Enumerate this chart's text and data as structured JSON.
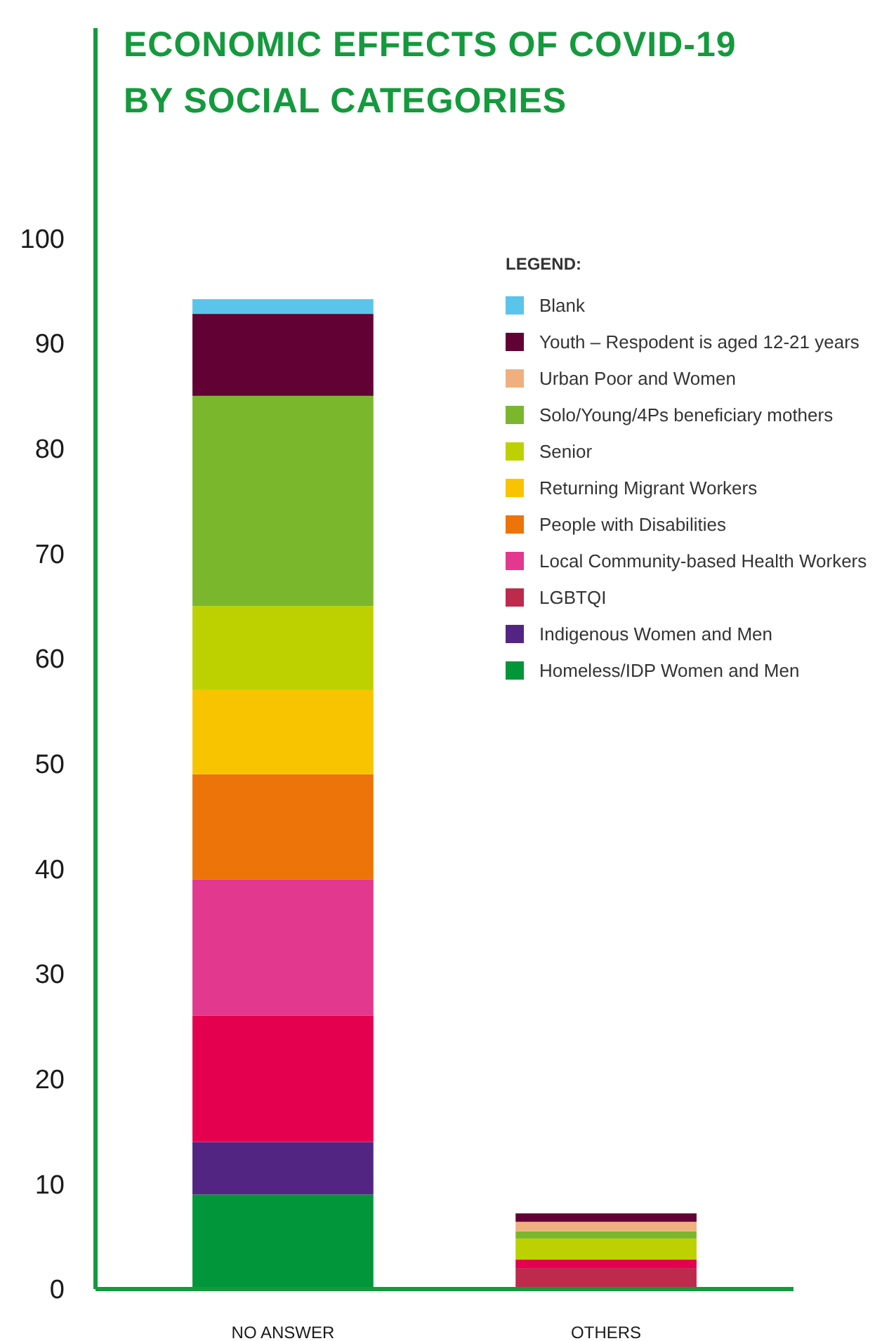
{
  "chart_data": {
    "type": "bar",
    "stacked": true,
    "title": "ECONOMIC EFFECTS OF COVID-19\nBY SOCIAL CATEGORIES",
    "legend_title": "LEGEND:",
    "legend": "top right",
    "grid": false,
    "categories": [
      "NO ANSWER",
      "OTHERS"
    ],
    "ylim": [
      0,
      120
    ],
    "yticks": [
      0,
      10,
      20,
      30,
      40,
      50,
      60,
      70,
      80,
      90,
      100
    ],
    "series": [
      {
        "name": "Homeless/IDP Women and Men",
        "color": "#009639",
        "values": [
          9,
          null
        ]
      },
      {
        "name": "Indigenous Women and Men",
        "color": "#522583",
        "values": [
          5,
          null
        ]
      },
      {
        "name": "LGBTQI",
        "color": "#be2a4c",
        "values": [
          null,
          2
        ]
      },
      {
        "color": "#e4004f",
        "values": [
          12,
          0.8
        ]
      },
      {
        "name": "Local Community-based Health Workers",
        "color": "#e2388d",
        "values": [
          13,
          null
        ]
      },
      {
        "name": "People with Disabilities",
        "color": "#ec7409",
        "values": [
          10,
          null
        ]
      },
      {
        "name": "Returning Migrant Workers",
        "color": "#f8c400",
        "values": [
          8,
          null
        ]
      },
      {
        "name": "Senior",
        "color": "#bed100",
        "values": [
          8,
          2
        ]
      },
      {
        "name": "Solo/Young/4Ps beneficiary mothers",
        "color": "#7ab72d",
        "values": [
          20,
          0.7
        ]
      },
      {
        "name": "Urban Poor and Women",
        "color": "#f0b07e",
        "values": [
          null,
          0.9
        ]
      },
      {
        "name": "Youth – Respodent is aged 12-21 years",
        "color": "#620134",
        "values": [
          7.8,
          0.8
        ]
      },
      {
        "name": "Blank",
        "color": "#5bc4ea",
        "values": [
          1.4,
          null
        ]
      }
    ]
  }
}
